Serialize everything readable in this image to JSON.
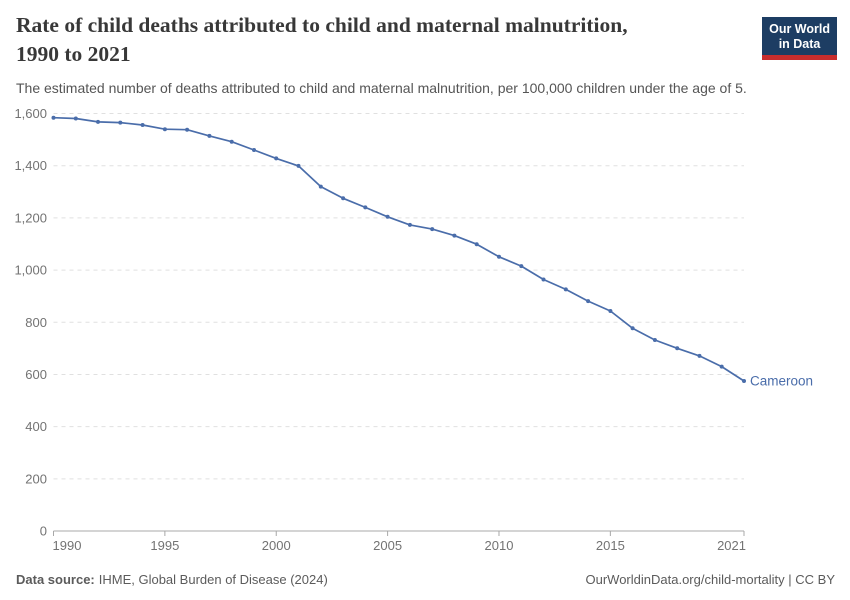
{
  "header": {
    "title_line1": "Rate of child deaths attributed to child and maternal malnutrition,",
    "title_line2": "1990 to 2021",
    "subtitle": "The estimated number of deaths attributed to child and maternal malnutrition, per 100,000 children under the age of 5.",
    "logo": {
      "line1": "Our World",
      "line2": "in Data",
      "bg_color": "#1d3d63",
      "accent_color": "#c82d2d"
    }
  },
  "chart_data": {
    "type": "line",
    "title": "Rate of child deaths attributed to child and maternal malnutrition, 1990 to 2021",
    "subtitle": "The estimated number of deaths attributed to child and maternal malnutrition, per 100,000 children under the age of 5.",
    "xlabel": "",
    "ylabel": "",
    "x": [
      1990,
      1991,
      1992,
      1993,
      1994,
      1995,
      1996,
      1997,
      1998,
      1999,
      2000,
      2001,
      2002,
      2003,
      2004,
      2005,
      2006,
      2007,
      2008,
      2009,
      2010,
      2011,
      2012,
      2013,
      2014,
      2015,
      2016,
      2017,
      2018,
      2019,
      2020,
      2021
    ],
    "series": [
      {
        "name": "Cameroon",
        "color": "#4a6daa",
        "values": [
          1584,
          1581,
          1568,
          1565,
          1556,
          1540,
          1538,
          1514,
          1492,
          1460,
          1428,
          1399,
          1320,
          1275,
          1240,
          1204,
          1173,
          1157,
          1132,
          1099,
          1051,
          1015,
          964,
          926,
          881,
          843,
          777,
          732,
          700,
          671,
          630,
          575
        ]
      }
    ],
    "ylim": [
      0,
      1600
    ],
    "yticks": [
      0,
      200,
      400,
      600,
      800,
      1000,
      1200,
      1400,
      1600
    ],
    "ytick_labels": [
      "0",
      "200",
      "400",
      "600",
      "800",
      "1,000",
      "1,200",
      "1,400",
      "1,600"
    ],
    "xticks": [
      1990,
      1995,
      2000,
      2005,
      2010,
      2015,
      2021
    ],
    "grid": "horizontal-dashed",
    "legend_position": "end-of-line-label",
    "colors": {
      "gridline": "#e0e0e0",
      "axis": "#a8a8a8",
      "tick_label": "#737373"
    }
  },
  "footer": {
    "source_label": "Data source:",
    "source_text": "IHME, Global Burden of Disease (2024)",
    "credit": "OurWorldinData.org/child-mortality | CC BY"
  }
}
